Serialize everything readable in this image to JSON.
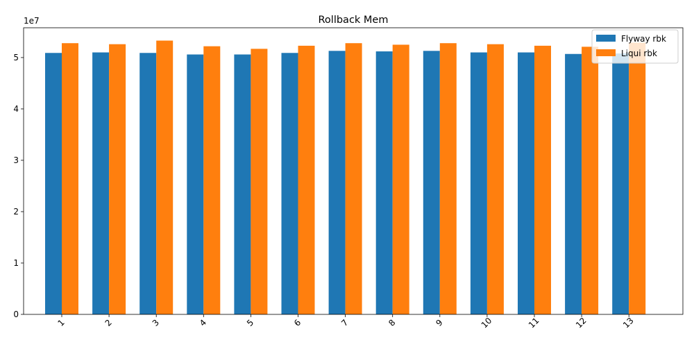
{
  "chart_data": {
    "type": "bar",
    "title": "Rollback Mem",
    "xlabel": "",
    "ylabel": "",
    "y_offset_label": "1e7",
    "categories": [
      "1",
      "2",
      "3",
      "4",
      "5",
      "6",
      "7",
      "8",
      "9",
      "10",
      "11",
      "12",
      "13"
    ],
    "series": [
      {
        "name": "Flyway rbk",
        "color": "#1f77b4",
        "values": [
          50900000,
          51000000,
          50900000,
          50600000,
          50600000,
          50900000,
          51300000,
          51200000,
          51300000,
          51000000,
          51000000,
          50700000,
          50800000
        ]
      },
      {
        "name": "Liqui rbk",
        "color": "#ff7f0e",
        "values": [
          52800000,
          52600000,
          53300000,
          52200000,
          51700000,
          52300000,
          52800000,
          52500000,
          52800000,
          52600000,
          52300000,
          52100000,
          52900000
        ]
      }
    ],
    "ylim": [
      0,
      55800000
    ],
    "yticks": [
      0,
      10000000,
      20000000,
      30000000,
      40000000,
      50000000
    ],
    "ytick_labels": [
      "0",
      "1",
      "2",
      "3",
      "4",
      "5"
    ],
    "legend_position": "top-right",
    "grid": false
  }
}
